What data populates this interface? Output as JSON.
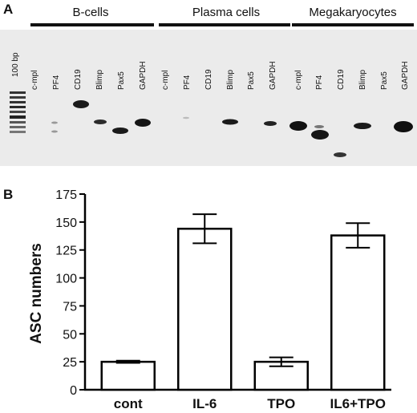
{
  "panel_a": {
    "letter": "A",
    "marker_label": "100 bp",
    "groups": [
      {
        "name": "B-cells",
        "lanes": [
          "c-mpl",
          "PF4",
          "CD19",
          "Blimp",
          "Pax5",
          "GAPDH"
        ]
      },
      {
        "name": "Plasma cells",
        "lanes": [
          "c-mpl",
          "PF4",
          "CD19",
          "Blimp",
          "Pax5",
          "GAPDH"
        ]
      },
      {
        "name": "Megakaryocytes",
        "lanes": [
          "c-mpl",
          "PF4",
          "CD19",
          "Blimp",
          "Pax5",
          "GAPDH"
        ]
      }
    ]
  },
  "chart_data": {
    "type": "bar",
    "panel": "B",
    "ylabel": "ASC numbers",
    "xlabel": "",
    "categories": [
      "cont",
      "IL-6",
      "TPO",
      "IL6+TPO"
    ],
    "values": [
      25,
      144,
      25,
      138
    ],
    "errors": [
      1,
      13,
      4,
      11
    ],
    "ylim": [
      0,
      175
    ],
    "yticks": [
      0,
      25,
      50,
      75,
      100,
      125,
      150,
      175
    ],
    "bar_color": "#ffffff",
    "edge_color": "#000000",
    "grid": false
  }
}
